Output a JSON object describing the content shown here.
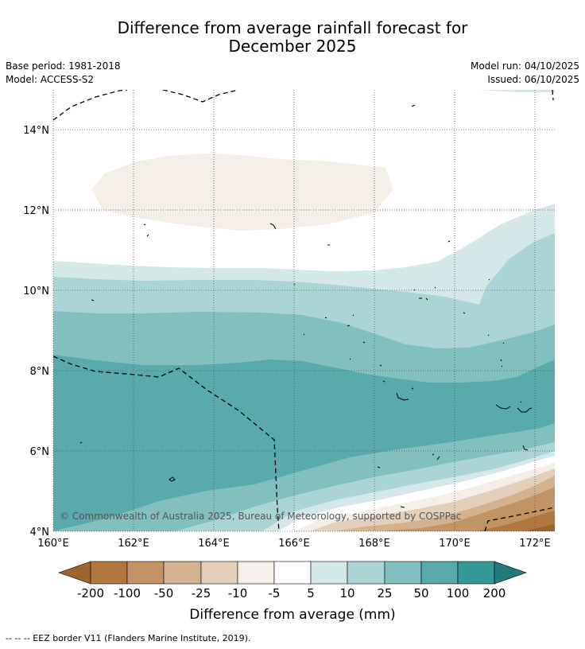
{
  "title_line1": "Difference from average rainfall forecast for",
  "title_line2": "December 2025",
  "base_period": "Base period: 1981-2018",
  "model": "Model: ACCESS-S2",
  "model_run": "Model run: 04/10/2025",
  "issued": "Issued: 06/10/2025",
  "copyright": "© Commonwealth of Australia 2025, Bureau of Meteorology, supported by COSPPac",
  "lon_ticks": [
    "160°E",
    "162°E",
    "164°E",
    "166°E",
    "168°E",
    "170°E",
    "172°E"
  ],
  "lat_ticks": [
    "14°N",
    "12°N",
    "10°N",
    "8°N",
    "6°N",
    "4°N"
  ],
  "colorbar": {
    "title": "Difference from average (mm)",
    "labels": [
      "-200",
      "-100",
      "-50",
      "-25",
      "-10",
      "-5",
      "5",
      "10",
      "25",
      "50",
      "100",
      "200"
    ],
    "colors": {
      "below_-200": "#a0642a",
      "-200_-100": "#b0773f",
      "-100_-50": "#c29465",
      "-50_-25": "#d4b28f",
      "-25_-10": "#e3cfba",
      "-10_-5": "#f3eee8",
      "-5_5": "#ffffff",
      "5_10": "#d5e8e8",
      "10_25": "#abd4d4",
      "25_50": "#82bfbf",
      "50_100": "#59aaaa",
      "100_200": "#339999",
      "above_200": "#237a7a"
    }
  },
  "footnote": "--  --  -- EEZ border V11 (Flanders Marine Institute, 2019)."
}
